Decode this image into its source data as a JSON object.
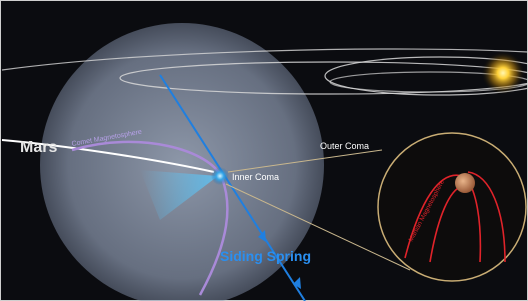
{
  "labels": {
    "mars": "Mars",
    "comet_magnetosphere": "Comet Magnetosphere",
    "outer_coma": "Outer Coma",
    "inner_coma": "Inner Coma",
    "comet_name": "Siding Spring",
    "martian_magnetosphere": "Martian Magnetosphere"
  }
}
